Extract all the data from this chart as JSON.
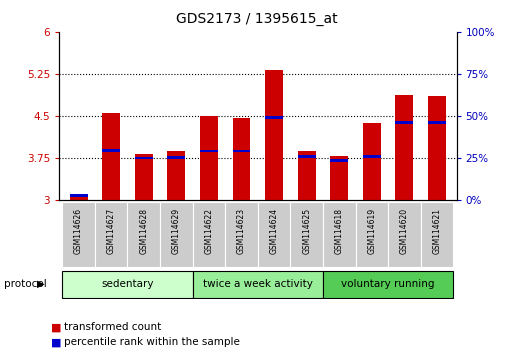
{
  "title": "GDS2173 / 1395615_at",
  "samples": [
    "GSM114626",
    "GSM114627",
    "GSM114628",
    "GSM114629",
    "GSM114622",
    "GSM114623",
    "GSM114624",
    "GSM114625",
    "GSM114618",
    "GSM114619",
    "GSM114620",
    "GSM114621"
  ],
  "bar_heights": [
    3.05,
    4.55,
    3.82,
    3.87,
    4.5,
    4.47,
    5.32,
    3.87,
    3.78,
    4.38,
    4.88,
    4.85
  ],
  "blue_positions": [
    3.08,
    3.88,
    3.75,
    3.76,
    3.87,
    3.87,
    4.47,
    3.78,
    3.7,
    3.78,
    4.38,
    4.38
  ],
  "bar_color": "#cc0000",
  "blue_color": "#0000cc",
  "ymin": 3.0,
  "ymax": 6.0,
  "y2min": 0,
  "y2max": 100,
  "yticks": [
    3.0,
    3.75,
    4.5,
    5.25,
    6.0
  ],
  "ytick_labels": [
    "3",
    "3.75",
    "4.5",
    "5.25",
    "6"
  ],
  "y2ticks": [
    0,
    25,
    50,
    75,
    100
  ],
  "y2tick_labels": [
    "0%",
    "25%",
    "50%",
    "75%",
    "100%"
  ],
  "groups": [
    {
      "label": "sedentary",
      "start": 0,
      "end": 4,
      "color": "#ccffcc"
    },
    {
      "label": "twice a week activity",
      "start": 4,
      "end": 8,
      "color": "#99ee99"
    },
    {
      "label": "voluntary running",
      "start": 8,
      "end": 12,
      "color": "#55cc55"
    }
  ],
  "protocol_label": "protocol",
  "legend_items": [
    {
      "color": "#cc0000",
      "label": "transformed count"
    },
    {
      "color": "#0000cc",
      "label": "percentile rank within the sample"
    }
  ],
  "bar_width": 0.55,
  "tick_label_color_left": "#cc0000",
  "tick_label_color_right": "#0000bb"
}
